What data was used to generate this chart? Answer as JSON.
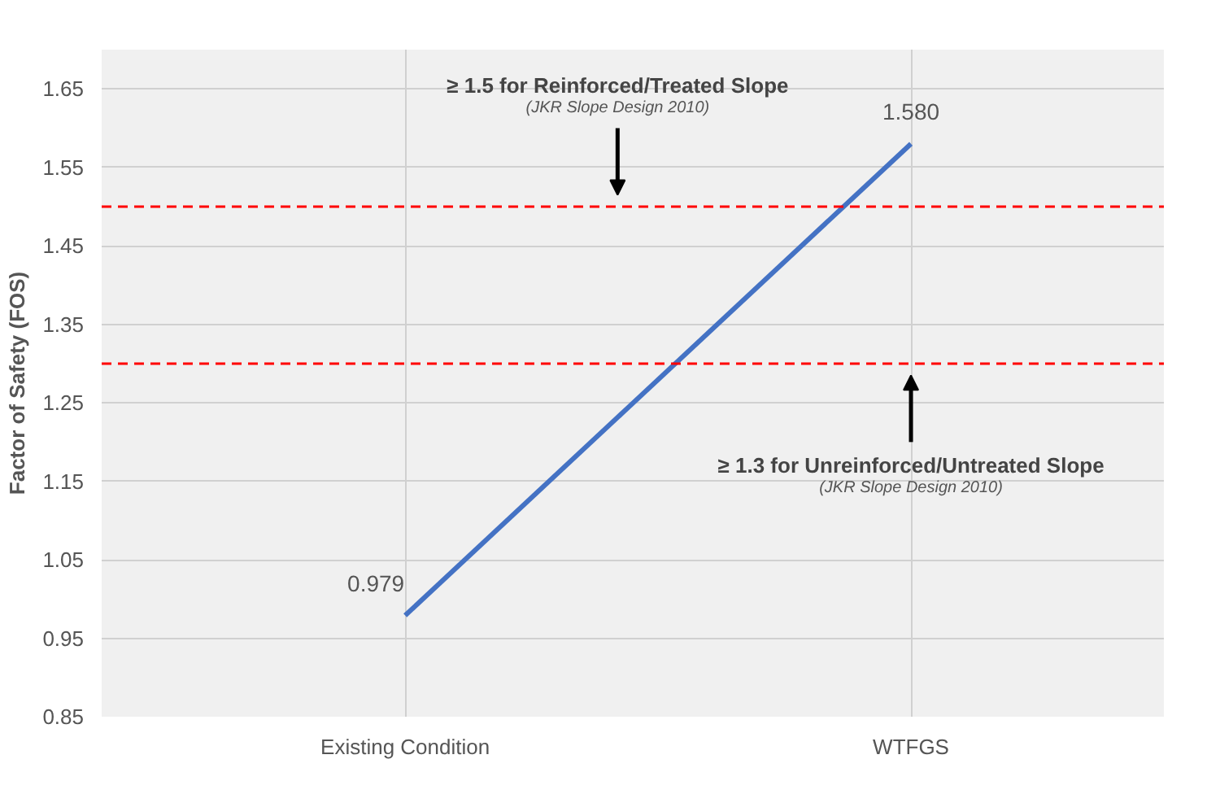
{
  "chart_data": {
    "type": "line",
    "ylabel": "Factor of Safety (FOS)",
    "categories": [
      "Existing Condition",
      "WTFGS"
    ],
    "series": [
      {
        "color": "#4472c4",
        "values": [
          0.979,
          1.58
        ],
        "value_labels": [
          "0.979",
          "1.580"
        ]
      }
    ],
    "ylim": [
      0.85,
      1.7
    ],
    "yticks": [
      0.85,
      0.95,
      1.05,
      1.15,
      1.25,
      1.35,
      1.45,
      1.55,
      1.65
    ],
    "grid": true,
    "marker": "none",
    "line_style": "solid",
    "ref_lines": [
      {
        "axis": "y",
        "value": 1.5,
        "color": "#ff0000",
        "line_style": "dashed"
      },
      {
        "axis": "y",
        "value": 1.3,
        "color": "#ff0000",
        "line_style": "dashed"
      }
    ],
    "annotations": [
      "≥ 1.5 for Reinforced/Treated Slope",
      "(JKR Slope Design 2010)",
      "≥ 1.3 for Unreinforced/Untreated Slope",
      "(JKR Slope Design 2010)"
    ]
  }
}
